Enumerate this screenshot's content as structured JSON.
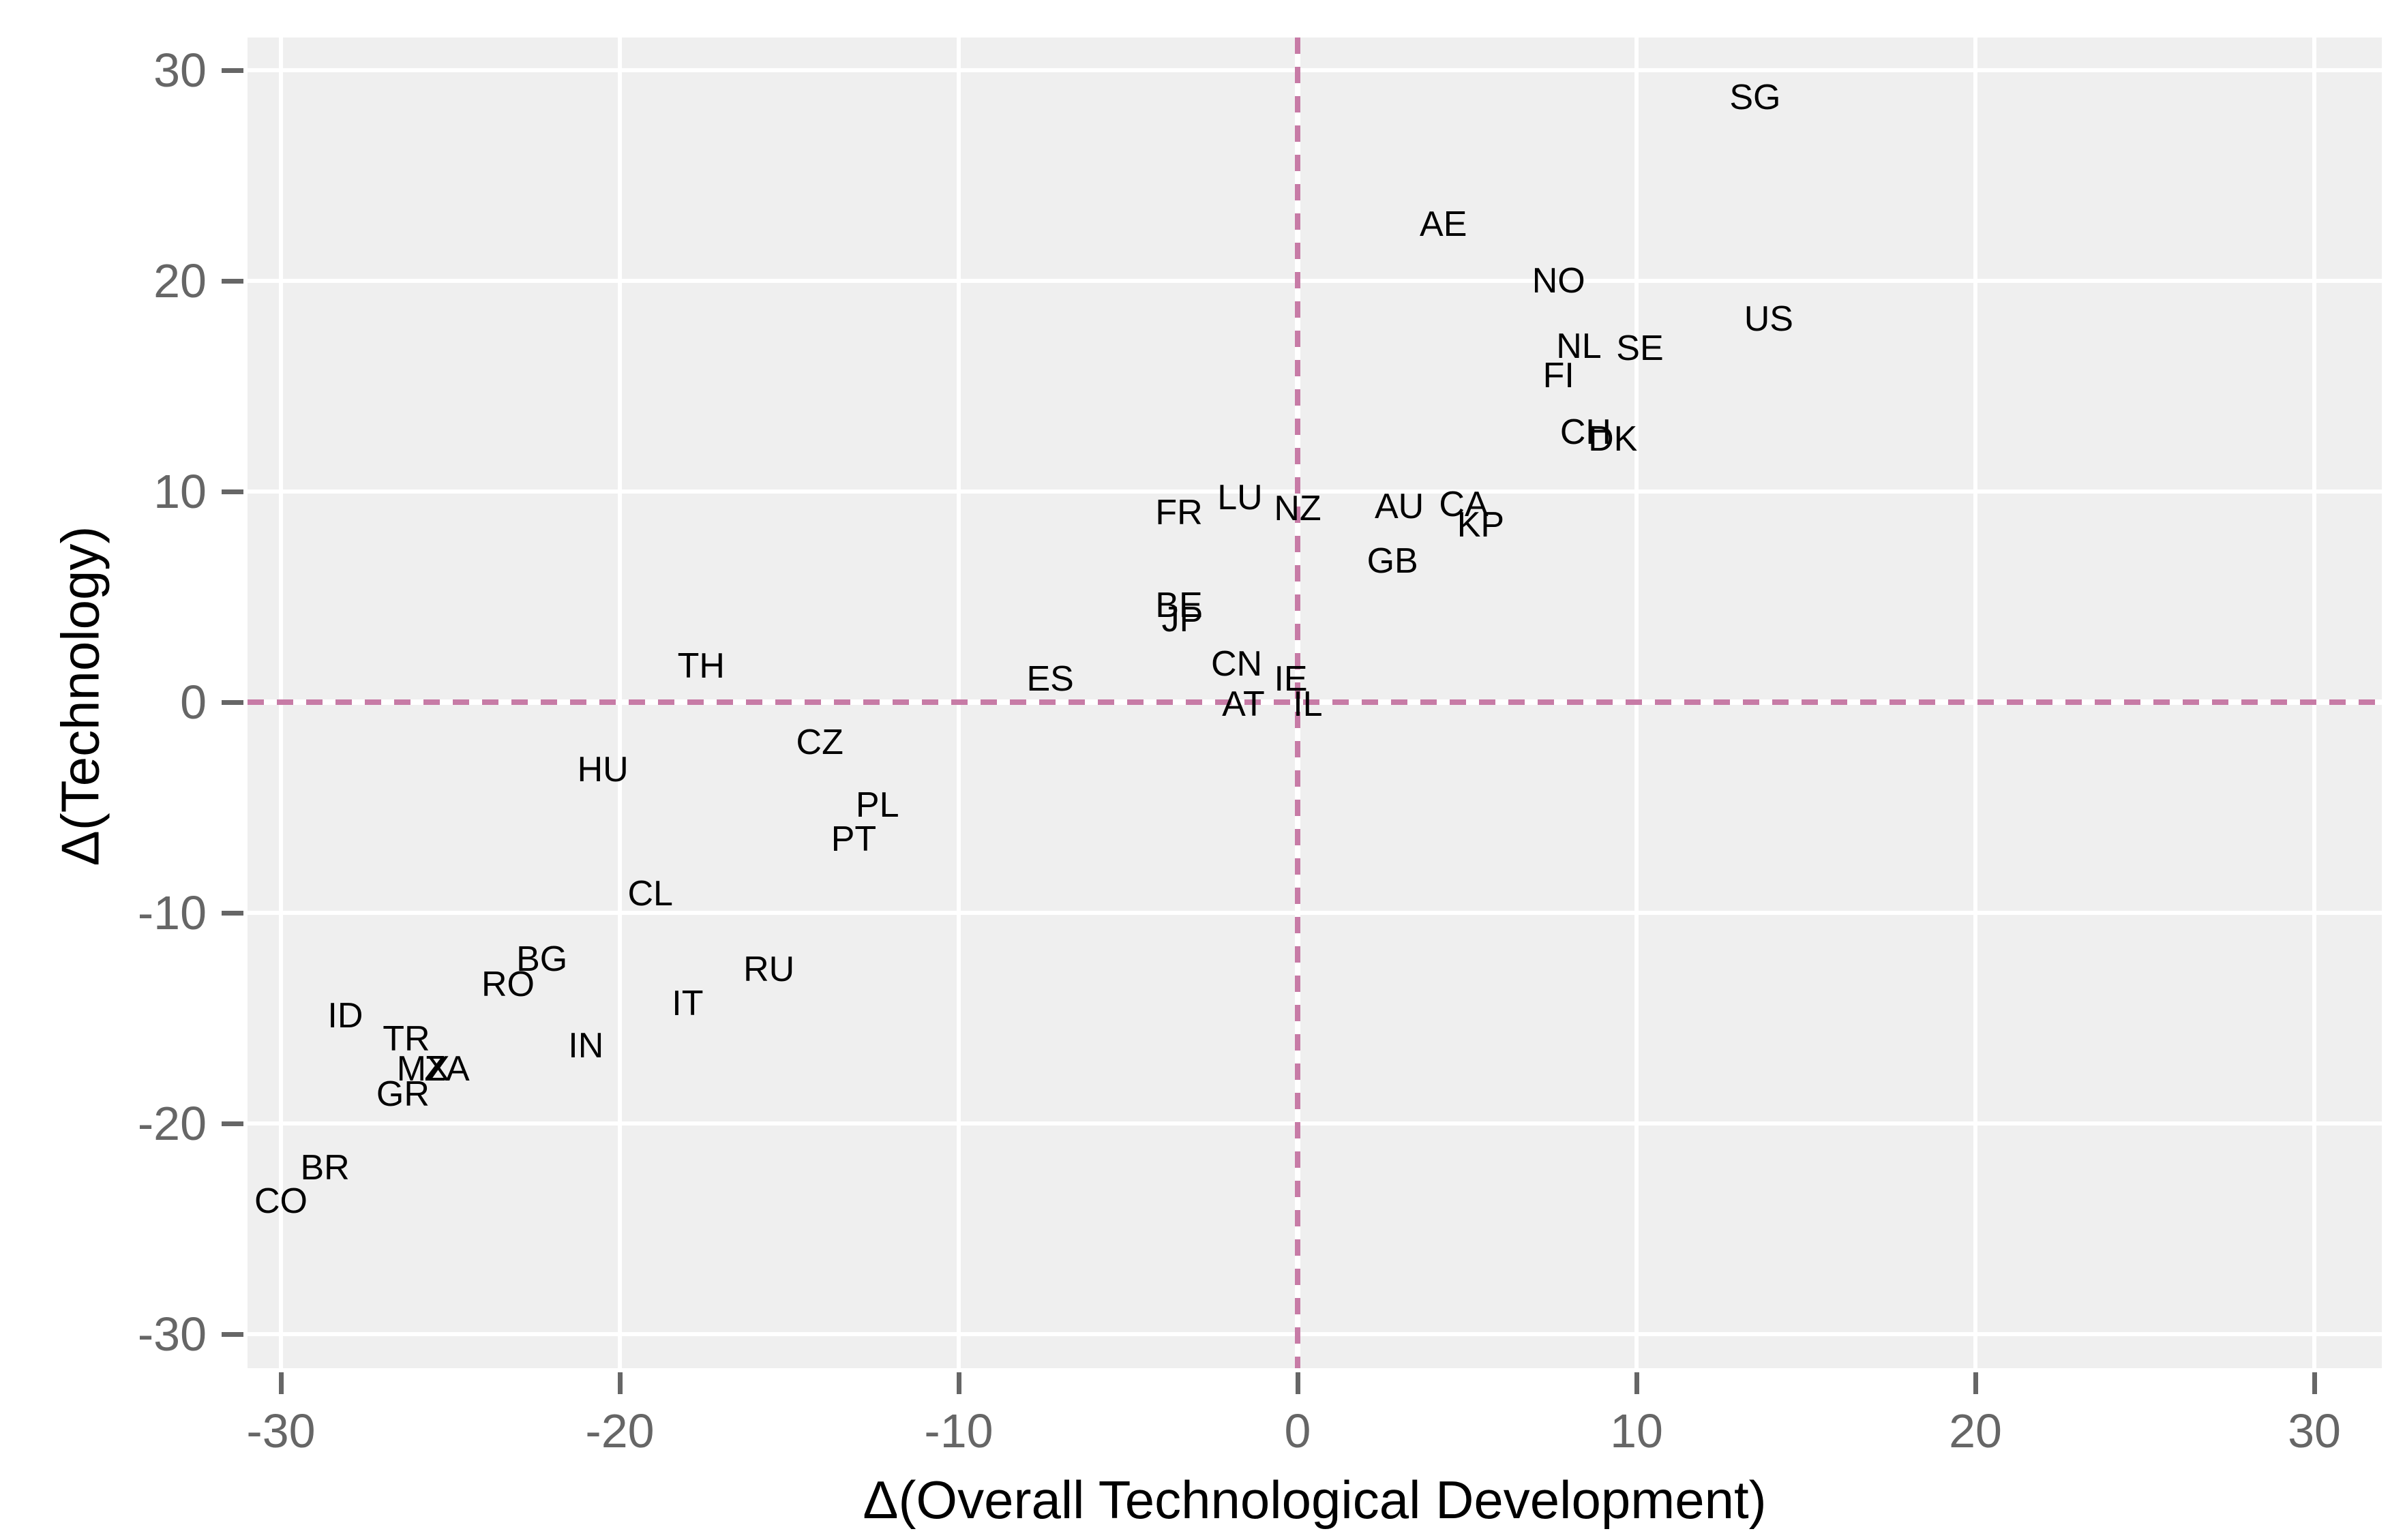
{
  "chart_data": {
    "type": "scatter",
    "title": "",
    "xlabel": "Δ(Overall Technological Development)",
    "ylabel": "Δ(Technology)",
    "x_ticks": [
      -30,
      -20,
      -10,
      0,
      10,
      20,
      30
    ],
    "y_ticks": [
      -30,
      -20,
      -10,
      0,
      10,
      20,
      30
    ],
    "xlim": [
      -31,
      32
    ],
    "ylim": [
      -31.5,
      31.5
    ],
    "grid": "major-only-white-on-gray",
    "legend_position": "none",
    "reference_lines": {
      "vertical_x": 0,
      "horizontal_y": 0,
      "style": "dashed"
    },
    "points": [
      {
        "label": "SG",
        "x": 13.5,
        "y": 28.7
      },
      {
        "label": "AE",
        "x": 4.3,
        "y": 22.7
      },
      {
        "label": "NO",
        "x": 7.7,
        "y": 20.0
      },
      {
        "label": "US",
        "x": 13.9,
        "y": 18.2
      },
      {
        "label": "NL",
        "x": 8.3,
        "y": 16.9
      },
      {
        "label": "SE",
        "x": 10.1,
        "y": 16.8
      },
      {
        "label": "FI",
        "x": 7.7,
        "y": 15.5
      },
      {
        "label": "CH",
        "x": 8.5,
        "y": 12.8
      },
      {
        "label": "DK",
        "x": 9.3,
        "y": 12.5
      },
      {
        "label": "CA",
        "x": 4.9,
        "y": 9.4
      },
      {
        "label": "KP",
        "x": 5.4,
        "y": 8.4
      },
      {
        "label": "AU",
        "x": 3.0,
        "y": 9.3
      },
      {
        "label": "NZ",
        "x": 0.0,
        "y": 9.2
      },
      {
        "label": "LU",
        "x": -1.7,
        "y": 9.7
      },
      {
        "label": "FR",
        "x": -3.5,
        "y": 9.0
      },
      {
        "label": "GB",
        "x": 2.8,
        "y": 6.7
      },
      {
        "label": "BE",
        "x": -3.5,
        "y": 4.6
      },
      {
        "label": "JP",
        "x": -3.4,
        "y": 3.9
      },
      {
        "label": "CN",
        "x": -1.8,
        "y": 1.8
      },
      {
        "label": "IE",
        "x": -0.2,
        "y": 1.1
      },
      {
        "label": "AT",
        "x": -1.6,
        "y": -0.1
      },
      {
        "label": "IL",
        "x": 0.3,
        "y": -0.1
      },
      {
        "label": "ES",
        "x": -7.3,
        "y": 1.1
      },
      {
        "label": "TH",
        "x": -17.6,
        "y": 1.7
      },
      {
        "label": "CZ",
        "x": -14.1,
        "y": -1.9
      },
      {
        "label": "HU",
        "x": -20.5,
        "y": -3.2
      },
      {
        "label": "PL",
        "x": -12.4,
        "y": -4.9
      },
      {
        "label": "PT",
        "x": -13.1,
        "y": -6.5
      },
      {
        "label": "CL",
        "x": -19.1,
        "y": -9.1
      },
      {
        "label": "BG",
        "x": -22.3,
        "y": -12.2
      },
      {
        "label": "RO",
        "x": -23.3,
        "y": -13.4
      },
      {
        "label": "RU",
        "x": -15.6,
        "y": -12.7
      },
      {
        "label": "IT",
        "x": -18.0,
        "y": -14.3
      },
      {
        "label": "ID",
        "x": -28.1,
        "y": -14.9
      },
      {
        "label": "TR",
        "x": -26.3,
        "y": -16.0
      },
      {
        "label": "IN",
        "x": -21.0,
        "y": -16.3
      },
      {
        "label": "MX",
        "x": -25.8,
        "y": -17.4
      },
      {
        "label": "ZA",
        "x": -25.1,
        "y": -17.4
      },
      {
        "label": "GR",
        "x": -26.4,
        "y": -18.6
      },
      {
        "label": "BR",
        "x": -28.7,
        "y": -22.1
      },
      {
        "label": "CO",
        "x": -30.0,
        "y": -23.7
      }
    ]
  },
  "style": {
    "panel_background": "#EFEFEF",
    "grid_color": "#FFFFFF",
    "reference_line_color": "#C77BA6",
    "tick_color": "#666666",
    "tick_label_color": "#666666",
    "point_label_color": "#000000",
    "axis_title_color": "#000000",
    "outer_background": "#FFFFFF"
  }
}
